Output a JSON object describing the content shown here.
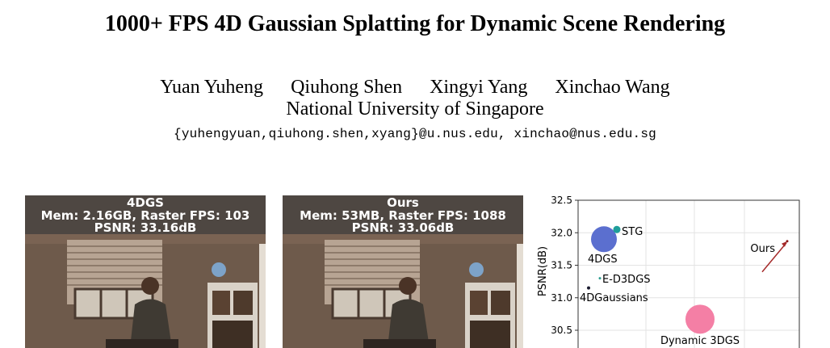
{
  "paper": {
    "title": "1000+ FPS 4D Gaussian Splatting for Dynamic Scene Rendering",
    "authors": [
      "Yuan Yuheng",
      "Qiuhong Shen",
      "Xingyi Yang",
      "Xinchao Wang"
    ],
    "affiliation": "National University of Singapore",
    "emails": "{yuhengyuan,qiuhong.shen,xyang}@u.nus.edu, xinchao@nus.edu.sg"
  },
  "comparison": [
    {
      "method": "4DGS",
      "mem": "Mem: 2.16GB, Raster FPS: 103",
      "psnr": "PSNR: 33.16dB"
    },
    {
      "method": "Ours",
      "mem": "Mem: 53MB, Raster FPS: 1088",
      "psnr": "PSNR: 33.06dB"
    }
  ],
  "chart_data": {
    "type": "scatter",
    "ylabel": "PSNR(dB)",
    "ylim": [
      30.3,
      32.5
    ],
    "yticks": [
      "32.5",
      "32.0",
      "31.5",
      "31.0",
      "30.5"
    ],
    "grid": true,
    "points": [
      {
        "label": "4DGS",
        "y": 31.9,
        "size": "large",
        "color": "#5b6fcf"
      },
      {
        "label": "STG",
        "y": 32.05,
        "size": "small",
        "color": "#1f9e9a"
      },
      {
        "label": "E-D3DGS",
        "y": 31.3,
        "size": "tiny",
        "color": "#2a9d8f"
      },
      {
        "label": "4DGaussians",
        "y": 31.15,
        "size": "tiny",
        "color": "#1a1a2e"
      },
      {
        "label": "Dynamic 3DGS",
        "y": 30.67,
        "size": "large",
        "color": "#f47fa5"
      },
      {
        "label": "Ours",
        "y": 31.87,
        "size": "tiny",
        "color": "#8b1a1a"
      }
    ],
    "arrow_color": "#a52a2a"
  }
}
